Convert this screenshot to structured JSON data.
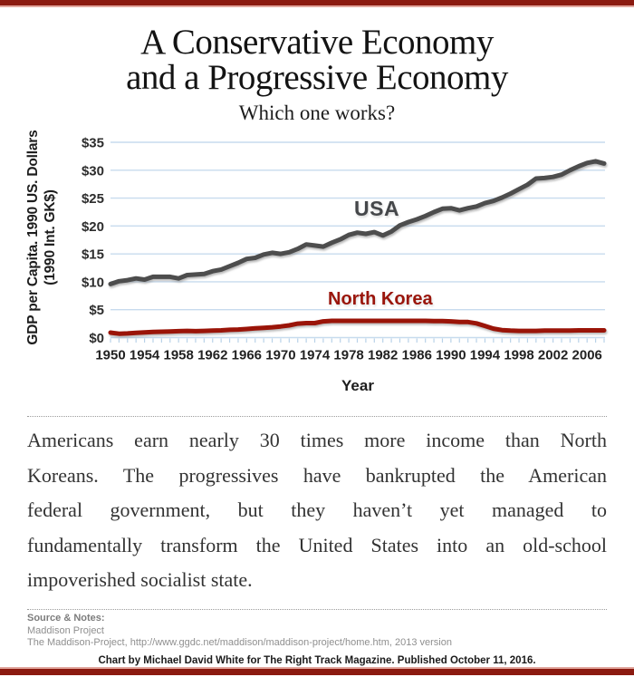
{
  "page": {
    "accent_color": "#8b1a10",
    "accent_light_color": "#e2a79f",
    "background_color": "#ffffff"
  },
  "header": {
    "title_line1": "A Conservative Economy",
    "title_line2": "and a Progressive Economy",
    "subtitle": "Which one works?"
  },
  "chart_data": {
    "type": "line",
    "xlabel": "Year",
    "ylabel_line1": "GDP per Capita. 1990 US. Dollars",
    "ylabel_line2": "(1990 Int. GK$)",
    "y_axis_note": "axis labeled $0-$35 (values read in thousands of dollars)",
    "xlim": [
      1950,
      2008
    ],
    "ylim": [
      0,
      35
    ],
    "grid": "horizontal light-blue gridlines, light-blue yearly tick marks under baseline",
    "legend_position": "inline labels next to lines",
    "grid_color": "#c7dbee",
    "tick_color": "#b9d2e8",
    "y_ticks": [
      {
        "value": 0,
        "label": "$0"
      },
      {
        "value": 5,
        "label": "$5"
      },
      {
        "value": 10,
        "label": "$10"
      },
      {
        "value": 15,
        "label": "$15"
      },
      {
        "value": 20,
        "label": "$20"
      },
      {
        "value": 25,
        "label": "$25"
      },
      {
        "value": 30,
        "label": "$30"
      },
      {
        "value": 35,
        "label": "$35"
      }
    ],
    "x_ticks": [
      1950,
      1954,
      1958,
      1962,
      1966,
      1970,
      1974,
      1978,
      1982,
      1986,
      1990,
      1994,
      1998,
      2002,
      2006
    ],
    "x": [
      1950,
      1951,
      1952,
      1953,
      1954,
      1955,
      1956,
      1957,
      1958,
      1959,
      1960,
      1961,
      1962,
      1963,
      1964,
      1965,
      1966,
      1967,
      1968,
      1969,
      1970,
      1971,
      1972,
      1973,
      1974,
      1975,
      1976,
      1977,
      1978,
      1979,
      1980,
      1981,
      1982,
      1983,
      1984,
      1985,
      1986,
      1987,
      1988,
      1989,
      1990,
      1991,
      1992,
      1993,
      1994,
      1995,
      1996,
      1997,
      1998,
      1999,
      2000,
      2001,
      2002,
      2003,
      2004,
      2005,
      2006,
      2007,
      2008
    ],
    "series": [
      {
        "id": "usa",
        "label": "USA",
        "color": "#4d4d4d",
        "values": [
          9.6,
          10.1,
          10.3,
          10.6,
          10.4,
          10.9,
          10.9,
          10.9,
          10.6,
          11.2,
          11.3,
          11.4,
          11.9,
          12.2,
          12.8,
          13.4,
          14.1,
          14.3,
          14.9,
          15.2,
          15.0,
          15.3,
          15.9,
          16.7,
          16.5,
          16.3,
          17.0,
          17.6,
          18.4,
          18.8,
          18.6,
          18.9,
          18.3,
          19.0,
          20.1,
          20.7,
          21.2,
          21.8,
          22.5,
          23.1,
          23.2,
          22.8,
          23.2,
          23.5,
          24.1,
          24.5,
          25.1,
          25.8,
          26.6,
          27.4,
          28.5,
          28.6,
          28.8,
          29.2,
          30.0,
          30.7,
          31.3,
          31.6,
          31.2
        ]
      },
      {
        "id": "north-korea",
        "label": "North Korea",
        "color": "#9a1408",
        "values": [
          0.9,
          0.7,
          0.75,
          0.85,
          0.95,
          1.0,
          1.05,
          1.1,
          1.15,
          1.2,
          1.15,
          1.2,
          1.25,
          1.3,
          1.4,
          1.45,
          1.55,
          1.65,
          1.75,
          1.85,
          2.0,
          2.2,
          2.5,
          2.6,
          2.6,
          2.9,
          3.0,
          3.0,
          3.0,
          3.0,
          3.0,
          3.0,
          3.0,
          3.0,
          3.0,
          3.0,
          3.0,
          3.0,
          2.95,
          2.95,
          2.9,
          2.8,
          2.8,
          2.55,
          2.1,
          1.6,
          1.35,
          1.25,
          1.2,
          1.2,
          1.2,
          1.25,
          1.25,
          1.25,
          1.25,
          1.3,
          1.3,
          1.3,
          1.3
        ]
      }
    ]
  },
  "body": {
    "lines": [
      "Americans earn nearly 30 times more income than North",
      "Koreans. The progressives have bankrupted the American",
      "federal government, but they haven’t yet managed to",
      "fundamentally transform the United States into an old-school",
      "impoverished socialist state."
    ]
  },
  "source": {
    "heading": "Source & Notes:",
    "line1": "Maddison Project",
    "line2": "The Maddison-Project, http://www.ggdc.net/maddison/maddison-project/home.htm, 2013 version"
  },
  "footer": {
    "credit": "Chart by Michael David White for The Right Track Magazine. Published October 11, 2016."
  }
}
